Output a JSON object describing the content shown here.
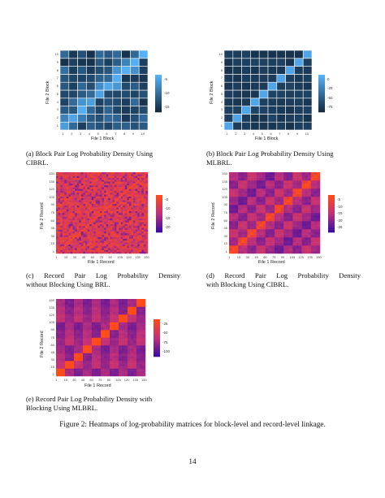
{
  "panels": [
    {
      "id": "a",
      "xlabel": "File 1 Block",
      "ylabel": "File 2 Block",
      "xticks": [
        "1",
        "2",
        "3",
        "4",
        "5",
        "6",
        "7",
        "8",
        "9",
        "10"
      ],
      "yticks": [
        "1",
        "2",
        "3",
        "4",
        "5",
        "6",
        "7",
        "8",
        "9",
        "10"
      ],
      "legend": [
        "-5",
        "-10",
        "-15"
      ],
      "colors": {
        "high": "#56B1F7",
        "low": "#132B43"
      },
      "caption_line1": "(a) Block Pair Log Probability Density Using",
      "caption_line2": "CIBRL."
    },
    {
      "id": "b",
      "xlabel": "File 1 Block",
      "ylabel": "File 2 Block",
      "xticks": [
        "1",
        "2",
        "3",
        "4",
        "5",
        "6",
        "7",
        "8",
        "9",
        "10"
      ],
      "yticks": [
        "1",
        "2",
        "3",
        "4",
        "5",
        "6",
        "7",
        "8",
        "9",
        "10"
      ],
      "legend": [
        "0",
        "-25",
        "-50",
        "-75"
      ],
      "colors": {
        "high": "#56B1F7",
        "low": "#132B43"
      },
      "caption_line1": "(b) Block Pair Log Probability Density Using",
      "caption_line2": "MLBRL."
    },
    {
      "id": "c",
      "xlabel": "File 1 Record",
      "ylabel": "File 2 Record",
      "xticks": [
        "1",
        "15",
        "30",
        "45",
        "60",
        "75",
        "90",
        "105",
        "120",
        "135",
        "150"
      ],
      "yticks": [
        "1",
        "15",
        "30",
        "45",
        "60",
        "75",
        "90",
        "105",
        "120",
        "135",
        "150"
      ],
      "legend": [
        "-5",
        "-10",
        "-15",
        "-20"
      ],
      "colors": {
        "high": "#FF4A1A",
        "mid": "#C0307A",
        "low": "#3A0CA3"
      },
      "caption_line1": "(c) Record Pair Log Probability Density",
      "caption_line2": "without Blocking Using BRL."
    },
    {
      "id": "d",
      "xlabel": "File 1 Record",
      "ylabel": "File 2 Record",
      "xticks": [
        "1",
        "15",
        "30",
        "45",
        "60",
        "75",
        "90",
        "105",
        "120",
        "135",
        "150"
      ],
      "yticks": [
        "1",
        "15",
        "30",
        "45",
        "60",
        "75",
        "90",
        "105",
        "120",
        "135",
        "150"
      ],
      "legend": [
        "-5",
        "-10",
        "-15",
        "-20",
        "-25"
      ],
      "colors": {
        "high": "#FF4A1A",
        "mid": "#C0307A",
        "low": "#3A0CA3"
      },
      "caption_line1": "(d) Record Pair Log Probability Density",
      "caption_line2": "with Blocking Using CIBRL."
    },
    {
      "id": "e",
      "xlabel": "File 1 Record",
      "ylabel": "File 2 Record",
      "xticks": [
        "1",
        "15",
        "30",
        "45",
        "60",
        "75",
        "90",
        "105",
        "120",
        "135",
        "150"
      ],
      "yticks": [
        "1",
        "15",
        "30",
        "45",
        "60",
        "75",
        "90",
        "105",
        "120",
        "135",
        "150"
      ],
      "legend": [
        "-25",
        "-50",
        "-75",
        "-100"
      ],
      "colors": {
        "high": "#FF4A1A",
        "mid": "#C0307A",
        "low": "#3A0CA3"
      },
      "caption_line1": "(e) Record Pair Log Probability Density with",
      "caption_line2": "Blocking Using MLBRL."
    }
  ],
  "figure_caption": "Figure 2: Heatmaps of log-probability matrices for block-level and record-level linkage.",
  "page_number": "14"
}
